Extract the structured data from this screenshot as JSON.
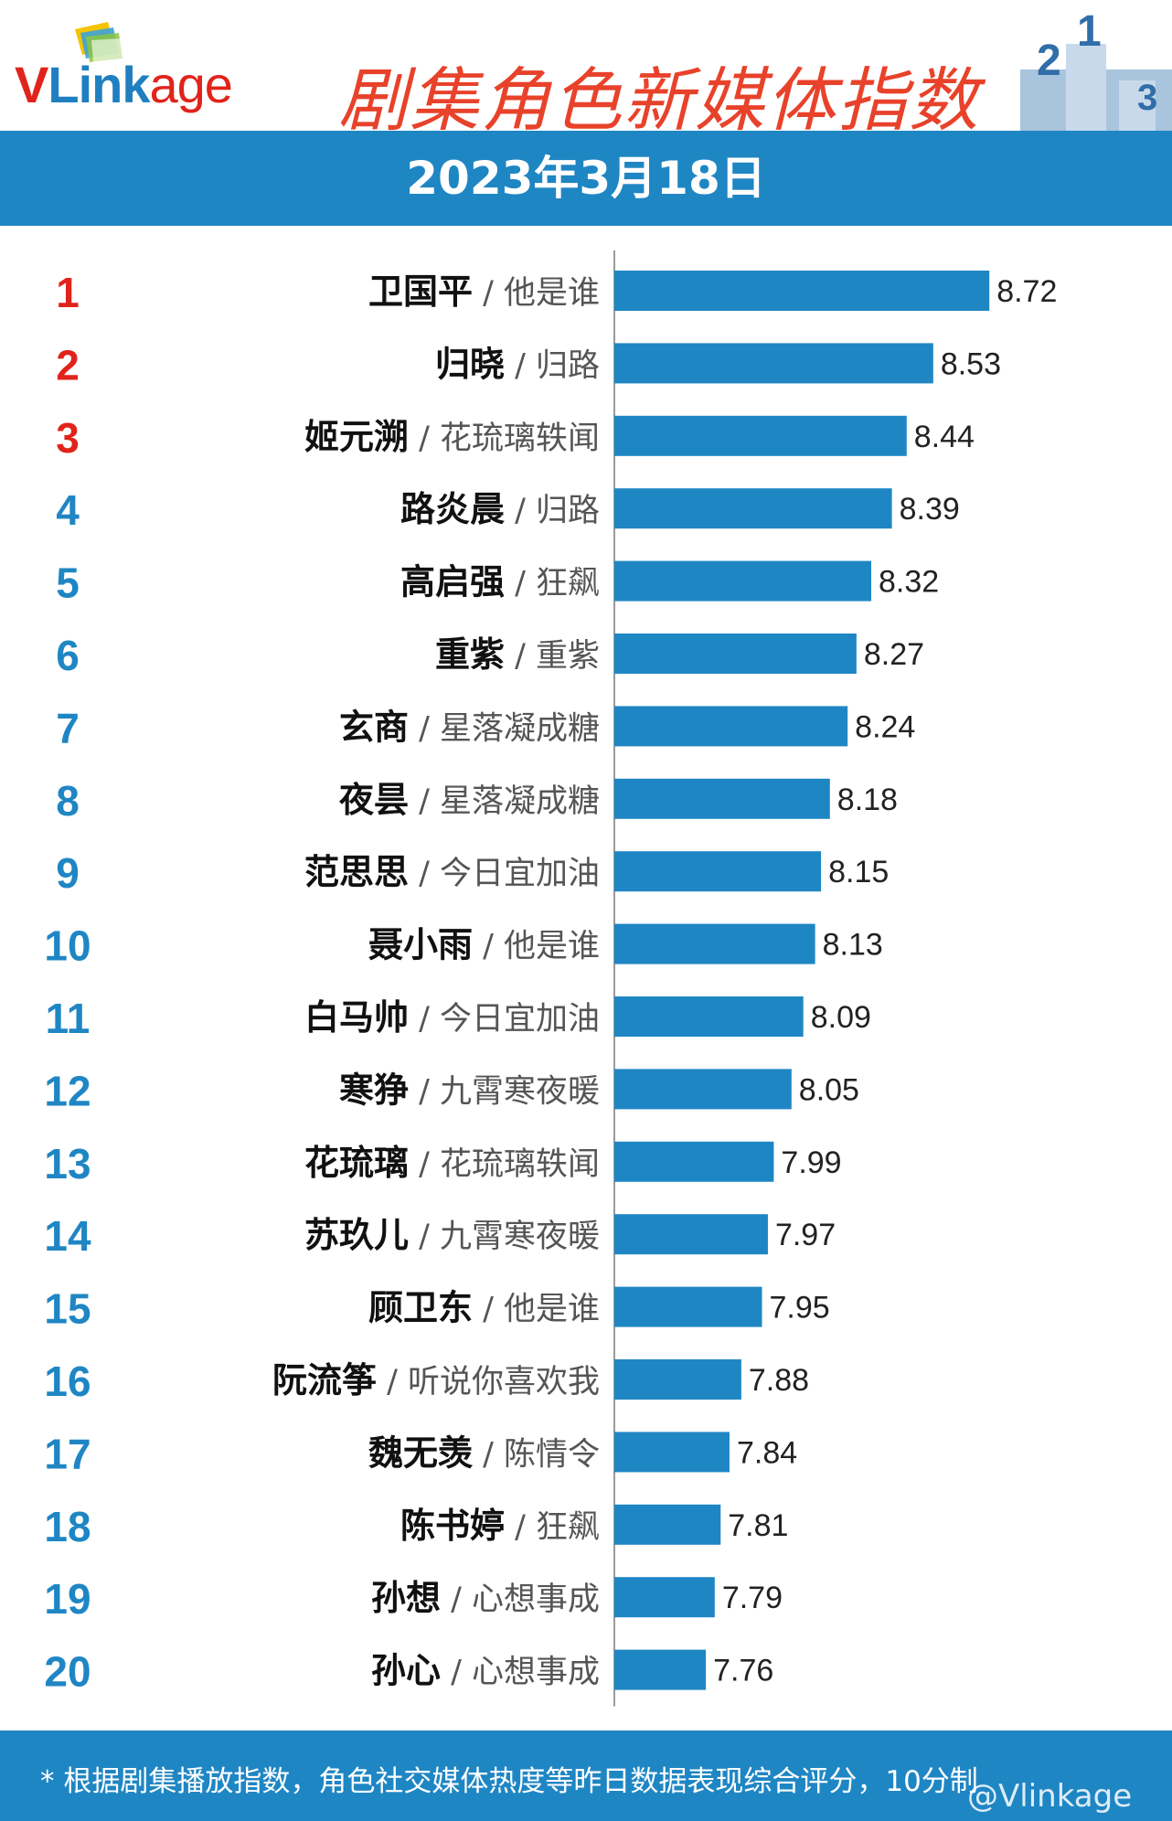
{
  "header": {
    "logo_text": "VLinkage",
    "title": "剧集角色新媒体指数",
    "date": "2023年3月18日"
  },
  "footer": {
    "note": "* 根据剧集播放指数，角色社交媒体热度等昨日数据表现综合评分，10分制",
    "watermark": "@Vlinkage"
  },
  "colors": {
    "bar": "#1f86c4",
    "rank_top": "#e0241b",
    "rank_other": "#1f86c4",
    "band": "#1f86c4",
    "title": "#e8422b"
  },
  "chart_data": {
    "type": "bar",
    "orientation": "horizontal",
    "separator": " / ",
    "ranks": [
      "1",
      "2",
      "3",
      "4",
      "5",
      "6",
      "7",
      "8",
      "9",
      "10",
      "11",
      "12",
      "13",
      "14",
      "15",
      "16",
      "17",
      "18",
      "19",
      "20"
    ],
    "characters": [
      "卫国平",
      "归晓",
      "姬元溯",
      "路炎晨",
      "高启强",
      "重紫",
      "玄商",
      "夜昙",
      "范思思",
      "聂小雨",
      "白马帅",
      "寒狰",
      "花琉璃",
      "苏玖儿",
      "顾卫东",
      "阮流筝",
      "魏无羡",
      "陈书婷",
      "孙想",
      "孙心"
    ],
    "dramas": [
      "他是谁",
      "归路",
      "花琉璃轶闻",
      "归路",
      "狂飙",
      "重紫",
      "星落凝成糖",
      "星落凝成糖",
      "今日宜加油",
      "他是谁",
      "今日宜加油",
      "九霄寒夜暖",
      "花琉璃轶闻",
      "九霄寒夜暖",
      "他是谁",
      "听说你喜欢我",
      "陈情令",
      "狂飙",
      "心想事成",
      "心想事成"
    ],
    "values": [
      8.72,
      8.53,
      8.44,
      8.39,
      8.32,
      8.27,
      8.24,
      8.18,
      8.15,
      8.13,
      8.09,
      8.05,
      7.99,
      7.97,
      7.95,
      7.88,
      7.84,
      7.81,
      7.79,
      7.76
    ],
    "value_labels": [
      "8.72",
      "8.53",
      "8.44",
      "8.39",
      "8.32",
      "8.27",
      "8.24",
      "8.18",
      "8.15",
      "8.13",
      "8.09",
      "8.05",
      "7.99",
      "7.97",
      "7.95",
      "7.88",
      "7.84",
      "7.81",
      "7.79",
      "7.76"
    ]
  }
}
